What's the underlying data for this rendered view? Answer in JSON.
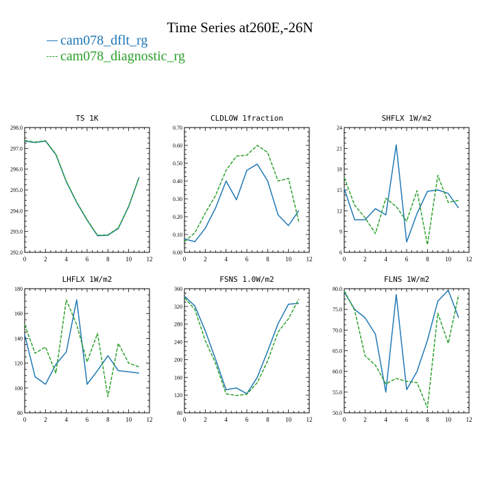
{
  "figure": {
    "title": "Time Series at260E,-26N",
    "legend": [
      {
        "label": "cam078_dflt_rg",
        "color": "#1f77b4",
        "dash": "solid"
      },
      {
        "label": "cam078_diagnostic_rg",
        "color": "#2ca02c",
        "dash": "dashed"
      }
    ]
  },
  "chart_data": [
    {
      "type": "line",
      "title": "TS   1K",
      "xlim": [
        0,
        12
      ],
      "xticks": [
        0,
        2,
        4,
        6,
        8,
        10,
        12
      ],
      "ylim": [
        292,
        298
      ],
      "yticks": [
        292,
        293,
        294,
        295,
        296,
        297,
        298
      ],
      "ytick_labels": [
        "292.0",
        "293.0",
        "294.0",
        "295.0",
        "296.0",
        "297.0",
        "298.0"
      ],
      "x": [
        0,
        1,
        2,
        3,
        4,
        5,
        6,
        7,
        8,
        9,
        10,
        11
      ],
      "series": [
        {
          "name": "cam078_dflt_rg",
          "values": [
            297.35,
            297.28,
            297.35,
            296.7,
            295.4,
            294.4,
            293.55,
            292.8,
            292.82,
            293.15,
            294.2,
            295.6
          ]
        },
        {
          "name": "cam078_diagnostic_rg",
          "values": [
            297.38,
            297.3,
            297.37,
            296.72,
            295.42,
            294.42,
            293.57,
            292.82,
            292.84,
            293.17,
            294.22,
            295.62
          ]
        }
      ]
    },
    {
      "type": "line",
      "title": "CLDLOW   1fraction",
      "xlim": [
        0,
        12
      ],
      "xticks": [
        0,
        2,
        4,
        6,
        8,
        10,
        12
      ],
      "ylim": [
        0,
        0.7
      ],
      "yticks": [
        0,
        0.1,
        0.2,
        0.3,
        0.4,
        0.5,
        0.6,
        0.7
      ],
      "ytick_labels": [
        "0.00",
        "0.10",
        "0.20",
        "0.30",
        "0.40",
        "0.50",
        "0.60",
        "0.70"
      ],
      "x": [
        0,
        1,
        2,
        3,
        4,
        5,
        6,
        7,
        8,
        9,
        10,
        11
      ],
      "series": [
        {
          "name": "cam078_dflt_rg",
          "values": [
            0.075,
            0.06,
            0.135,
            0.25,
            0.4,
            0.295,
            0.46,
            0.495,
            0.4,
            0.21,
            0.15,
            0.235
          ]
        },
        {
          "name": "cam078_diagnostic_rg",
          "values": [
            0.06,
            0.11,
            0.22,
            0.32,
            0.46,
            0.54,
            0.545,
            0.6,
            0.56,
            0.4,
            0.415,
            0.17
          ]
        }
      ]
    },
    {
      "type": "line",
      "title": "SHFLX   1W/m2",
      "xlim": [
        0,
        12
      ],
      "xticks": [
        0,
        2,
        4,
        6,
        8,
        10,
        12
      ],
      "ylim": [
        6,
        24
      ],
      "yticks": [
        6,
        9,
        12,
        15,
        18,
        21,
        24
      ],
      "ytick_labels": [
        "6",
        "9",
        "12",
        "15",
        "18",
        "21",
        "24"
      ],
      "x": [
        0,
        1,
        2,
        3,
        4,
        5,
        6,
        7,
        8,
        9,
        10,
        11
      ],
      "series": [
        {
          "name": "cam078_dflt_rg",
          "values": [
            15.2,
            10.7,
            10.7,
            12.3,
            11.4,
            21.5,
            7.5,
            11.6,
            14.8,
            15,
            14.5,
            12.4
          ]
        },
        {
          "name": "cam078_diagnostic_rg",
          "values": [
            16.8,
            12.8,
            11,
            8.7,
            13.8,
            12.6,
            10.5,
            14.9,
            7.1,
            17.1,
            13.2,
            13.5
          ]
        }
      ]
    },
    {
      "type": "line",
      "title": "LHFLX   1W/m2",
      "xlim": [
        0,
        12
      ],
      "xticks": [
        0,
        2,
        4,
        6,
        8,
        10,
        12
      ],
      "ylim": [
        80,
        180
      ],
      "yticks": [
        80,
        100,
        120,
        140,
        160,
        180
      ],
      "ytick_labels": [
        "80",
        "100",
        "120",
        "140",
        "160",
        "180"
      ],
      "x": [
        0,
        1,
        2,
        3,
        4,
        5,
        6,
        7,
        8,
        9,
        10,
        11
      ],
      "series": [
        {
          "name": "cam078_dflt_rg",
          "values": [
            143,
            109,
            103,
            119,
            129,
            171,
            103,
            114,
            126,
            114,
            113,
            112
          ]
        },
        {
          "name": "cam078_diagnostic_rg",
          "values": [
            151,
            128,
            133,
            112,
            171,
            151,
            121,
            144,
            93,
            136,
            120,
            117
          ]
        }
      ]
    },
    {
      "type": "line",
      "title": "FSNS   1.0W/m2",
      "xlim": [
        0,
        12
      ],
      "xticks": [
        0,
        2,
        4,
        6,
        8,
        10,
        12
      ],
      "ylim": [
        80,
        360
      ],
      "yticks": [
        80,
        120,
        160,
        200,
        240,
        280,
        320,
        360
      ],
      "ytick_labels": [
        "80",
        "120",
        "160",
        "200",
        "240",
        "280",
        "320",
        "360"
      ],
      "x": [
        0,
        1,
        2,
        3,
        4,
        5,
        6,
        7,
        8,
        9,
        10,
        11
      ],
      "series": [
        {
          "name": "cam078_dflt_rg",
          "values": [
            343,
            321,
            265,
            200,
            132,
            136,
            123,
            160,
            219,
            281,
            325,
            327
          ]
        },
        {
          "name": "cam078_diagnostic_rg",
          "values": [
            340,
            313,
            243,
            191,
            123,
            119,
            122,
            148,
            197,
            262,
            292,
            337
          ]
        }
      ]
    },
    {
      "type": "line",
      "title": "FLNS   1W/m2",
      "xlim": [
        0,
        12
      ],
      "xticks": [
        0,
        2,
        4,
        6,
        8,
        10,
        12
      ],
      "ylim": [
        50,
        80
      ],
      "yticks": [
        50,
        55,
        60,
        65,
        70,
        75,
        80
      ],
      "ytick_labels": [
        "50.0",
        "55.0",
        "60.0",
        "65.0",
        "70.0",
        "75.0",
        "80.0"
      ],
      "x": [
        0,
        1,
        2,
        3,
        4,
        5,
        6,
        7,
        8,
        9,
        10,
        11
      ],
      "series": [
        {
          "name": "cam078_dflt_rg",
          "values": [
            79.2,
            75.0,
            73.0,
            69.0,
            55.0,
            78.6,
            55.6,
            60.0,
            67.5,
            77.0,
            79.6,
            73.0
          ]
        },
        {
          "name": "cam078_diagnostic_rg",
          "values": [
            79.5,
            74.8,
            63.8,
            61.5,
            57.0,
            58.3,
            57.6,
            57.3,
            51.2,
            74.1,
            66.8,
            78.5
          ]
        }
      ]
    }
  ]
}
